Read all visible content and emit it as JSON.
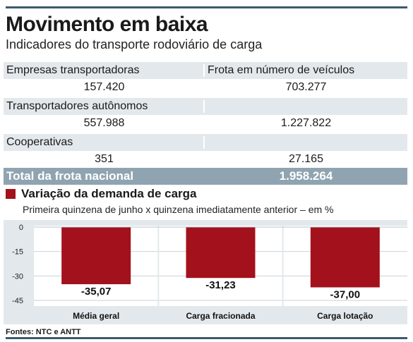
{
  "header": {
    "title": "Movimento em baixa",
    "subtitle": "Indicadores do transporte rodoviário de carga"
  },
  "table": {
    "col1_header": "Empresas transportadoras",
    "col2_header": "Frota em número de veículos",
    "empresas_count": "157.420",
    "empresas_frota": "703.277",
    "autonomos_label": "Transportadores autônomos",
    "autonomos_count": "557.988",
    "autonomos_frota": "1.227.822",
    "cooperativas_label": "Cooperativas",
    "cooperativas_count": "351",
    "cooperativas_frota": "27.165",
    "total_label": "Total da frota nacional",
    "total_value": "1.958.264"
  },
  "section": {
    "title": "Variação da demanda de carga",
    "subtitle": "Primeira quinzena de junho x quinzena imediatamente anterior – em %"
  },
  "chart_data": {
    "type": "bar",
    "categories": [
      "Média geral",
      "Carga fracionada",
      "Carga lotação"
    ],
    "values": [
      -35.07,
      -31.23,
      -37.0
    ],
    "value_labels": [
      "-35,07",
      "-31,23",
      "-37,00"
    ],
    "yticks": [
      "0",
      "-15",
      "-30",
      "-45"
    ],
    "ytick_values": [
      0,
      -15,
      -30,
      -45
    ],
    "ylim": [
      -45,
      0
    ],
    "bar_color": "#a3111c",
    "grid": true
  },
  "footer": {
    "source": "Fontes: NTC e ANTT"
  },
  "colors": {
    "accent": "#a3111c",
    "rule": "#3d5a6e",
    "shade": "#e3e8ec",
    "total_bg": "#8fa4b0"
  }
}
